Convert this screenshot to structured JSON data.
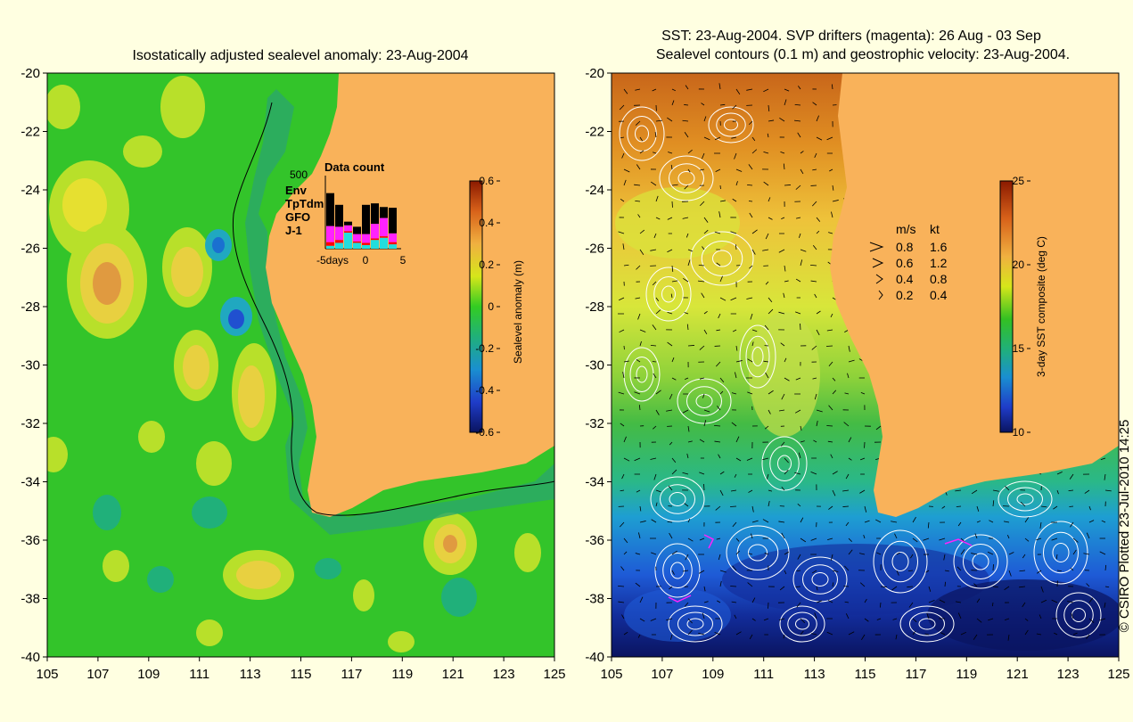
{
  "left_panel": {
    "title": "Isostatically adjusted sealevel anomaly: 23-Aug-2004",
    "lat_ticks": [
      "-20",
      "-22",
      "-24",
      "-26",
      "-28",
      "-30",
      "-32",
      "-34",
      "-36",
      "-38",
      "-40"
    ],
    "lon_ticks": [
      "105",
      "107",
      "109",
      "111",
      "113",
      "115",
      "117",
      "119",
      "121",
      "123",
      "125"
    ],
    "colorbar": {
      "label": "Sealevel anomaly (m)",
      "ticks": [
        "0.6",
        "0.4",
        "0.2",
        "0",
        "-0.2",
        "-0.4",
        "-0.6"
      ],
      "range": [
        -0.6,
        0.6
      ]
    },
    "inset": {
      "title": "Data count",
      "ymax_label": "500",
      "legend": [
        {
          "label": "Env",
          "color": "#000000"
        },
        {
          "label": "TpTdm",
          "color": "#ff22ff"
        },
        {
          "label": "GFO",
          "color": "#ff0000"
        },
        {
          "label": "J-1",
          "color": "#22dddd"
        }
      ],
      "x_ticks": [
        "-5days",
        "0",
        "5"
      ],
      "bars": [
        {
          "env": 0.45,
          "tp": 0.22,
          "gfo": 0.05,
          "j1": 0.04
        },
        {
          "env": 0.3,
          "tp": 0.18,
          "gfo": 0.04,
          "j1": 0.08
        },
        {
          "env": 0.05,
          "tp": 0.08,
          "gfo": 0.02,
          "j1": 0.22
        },
        {
          "env": 0.1,
          "tp": 0.1,
          "gfo": 0.02,
          "j1": 0.08
        },
        {
          "env": 0.4,
          "tp": 0.12,
          "gfo": 0.03,
          "j1": 0.05
        },
        {
          "env": 0.28,
          "tp": 0.2,
          "gfo": 0.02,
          "j1": 0.12
        },
        {
          "env": 0.15,
          "tp": 0.25,
          "gfo": 0.02,
          "j1": 0.15
        },
        {
          "env": 0.35,
          "tp": 0.12,
          "gfo": 0.03,
          "j1": 0.06
        }
      ]
    }
  },
  "right_panel": {
    "title_line1": "SST: 23-Aug-2004. SVP drifters (magenta): 26 Aug - 03 Sep",
    "title_line2": "Sealevel contours (0.1 m) and geostrophic velocity: 23-Aug-2004.",
    "lat_ticks": [
      "-20",
      "-22",
      "-24",
      "-26",
      "-28",
      "-30",
      "-32",
      "-34",
      "-36",
      "-38",
      "-40"
    ],
    "lon_ticks": [
      "105",
      "107",
      "109",
      "111",
      "113",
      "115",
      "117",
      "119",
      "121",
      "123",
      "125"
    ],
    "colorbar": {
      "label": "3-day SST composite (deg C)",
      "ticks": [
        "25",
        "20",
        "15",
        "10"
      ],
      "range": [
        10,
        25
      ]
    },
    "velocity_legend": {
      "header_ms": "m/s",
      "header_kt": "kt",
      "rows": [
        {
          "ms": "0.8",
          "kt": "1.6"
        },
        {
          "ms": "0.6",
          "kt": "1.2"
        },
        {
          "ms": "0.4",
          "kt": "0.8"
        },
        {
          "ms": "0.2",
          "kt": "0.4"
        }
      ]
    }
  },
  "copyright": "© CSIRO Plotted 23-Jul-2010 14:25",
  "colors": {
    "land": "#f9b25a",
    "background": "#ffffe1",
    "drifter": "#ff22ff",
    "contour": "#ffffff"
  }
}
